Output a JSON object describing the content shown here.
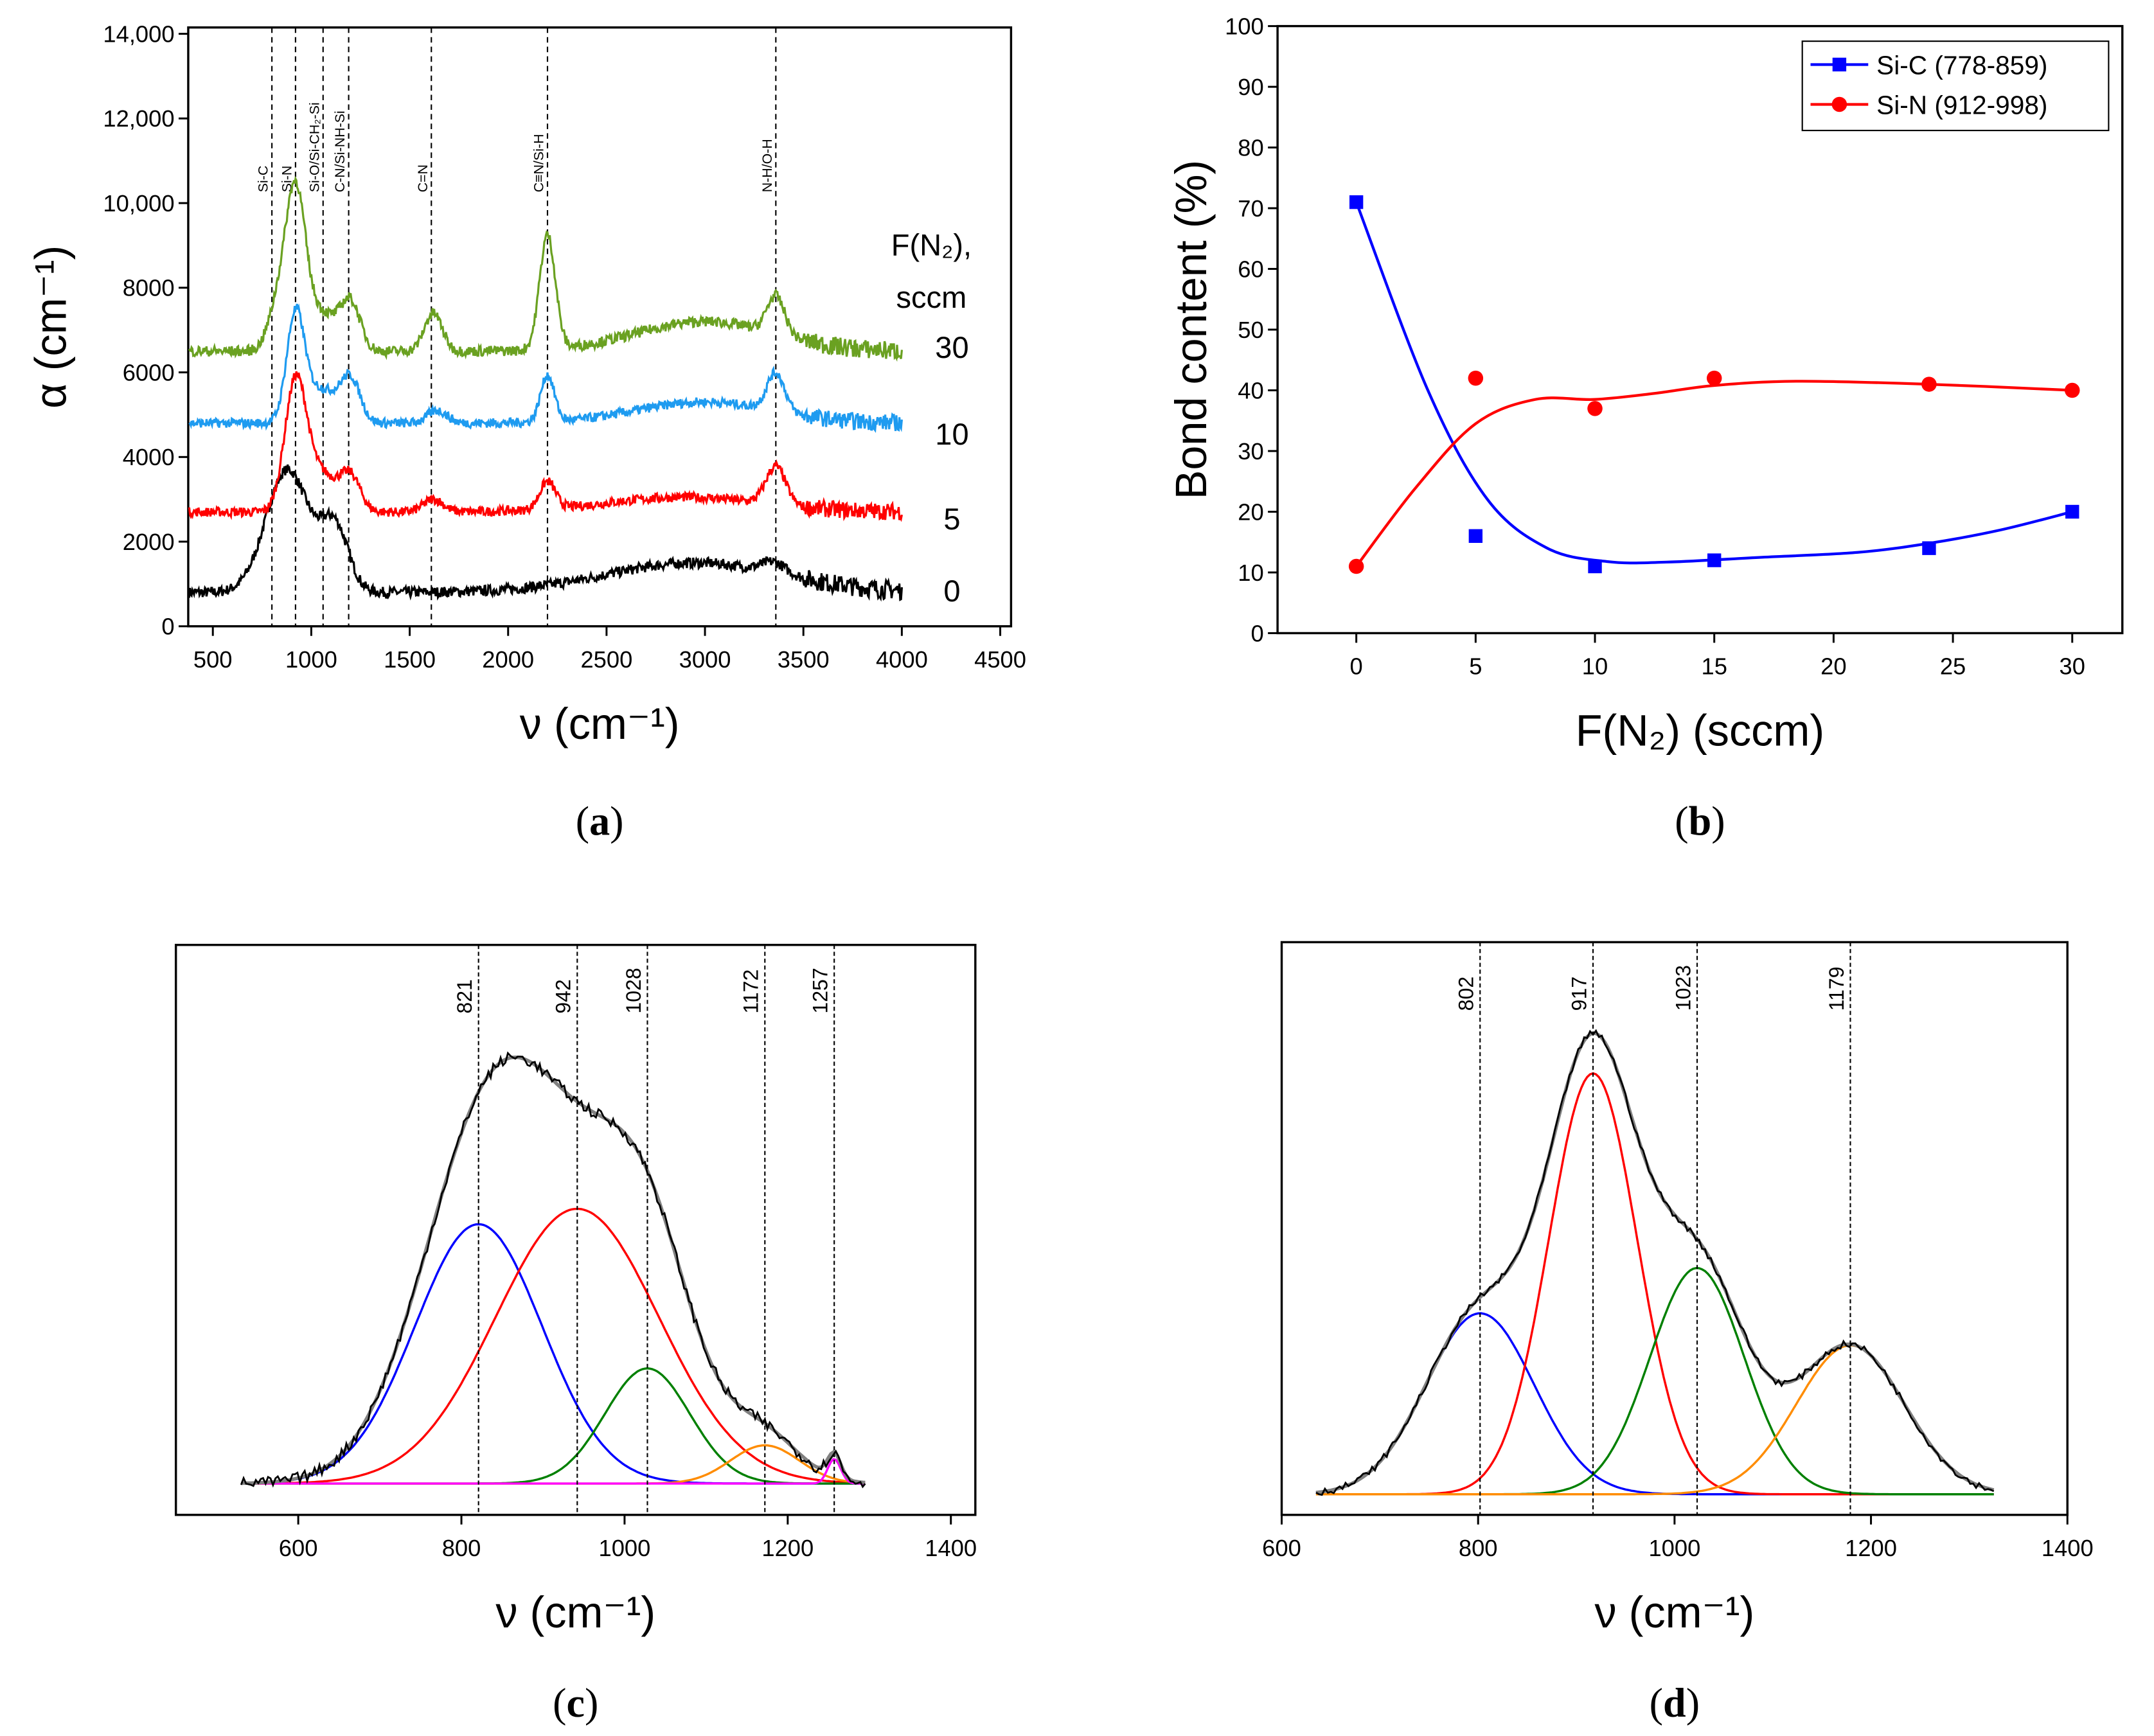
{
  "chart_data": [
    {
      "id": "a",
      "caption": "a",
      "type": "line",
      "title": "",
      "xlabel": "ν (cm⁻¹)",
      "ylabel": "α (cm⁻¹)",
      "xlim": [
        375,
        4555
      ],
      "ylim": [
        0,
        14150
      ],
      "xticks": [
        500,
        1000,
        1500,
        2000,
        2500,
        3000,
        3500,
        4000,
        4500
      ],
      "yticks": [
        0,
        2000,
        4000,
        6000,
        8000,
        10000,
        12000,
        14000
      ],
      "ytick_labels": [
        "0",
        "2000",
        "4000",
        "6000",
        "8000",
        "10,000",
        "12,000",
        "14,000"
      ],
      "legend_title": [
        "F(N₂),",
        "sccm"
      ],
      "annotations": [
        {
          "label": "Si-C",
          "x": 800
        },
        {
          "label": "Si-N",
          "x": 920
        },
        {
          "label": "Si-O/Si-CH₂-Si",
          "x": 1060
        },
        {
          "label": "C-N/Si-NH-Si",
          "x": 1190
        },
        {
          "label": "C=N",
          "x": 1610
        },
        {
          "label": "C≡N/Si-H",
          "x": 2200
        },
        {
          "label": "N-H/O-H",
          "x": 3360
        }
      ],
      "x_range": [
        380,
        4000
      ],
      "series": [
        {
          "name": "0",
          "color": "#000000",
          "baseline": 800,
          "noise": 250,
          "label_y": 850,
          "peaks": [
            [
              880,
              2900,
              110
            ],
            [
              1120,
              1500,
              70
            ],
            [
              2950,
              700,
              450
            ],
            [
              3350,
              250,
              60
            ]
          ]
        },
        {
          "name": "5",
          "color": "#ff0000",
          "baseline": 2700,
          "noise": 220,
          "label_y": 2550,
          "peaks": [
            [
              920,
              3000,
              55
            ],
            [
              1050,
              900,
              80
            ],
            [
              1200,
              800,
              50
            ],
            [
              1620,
              300,
              50
            ],
            [
              2200,
              650,
              40
            ],
            [
              2900,
              350,
              400
            ],
            [
              3360,
              900,
              50
            ]
          ]
        },
        {
          "name": "10",
          "color": "#1e9bf0",
          "baseline": 4800,
          "noise": 220,
          "label_y": 4550,
          "peaks": [
            [
              920,
              2500,
              45
            ],
            [
              1050,
              800,
              80
            ],
            [
              1200,
              1000,
              50
            ],
            [
              1640,
              300,
              50
            ],
            [
              2200,
              1100,
              35
            ],
            [
              3000,
              500,
              350
            ],
            [
              3360,
              900,
              45
            ]
          ]
        },
        {
          "name": "30",
          "color": "#6aa121",
          "baseline": 6500,
          "noise": 250,
          "label_y": 6600,
          "peaks": [
            [
              920,
              3600,
              50
            ],
            [
              830,
              1000,
              50
            ],
            [
              1050,
              900,
              80
            ],
            [
              1200,
              1100,
              50
            ],
            [
              1620,
              900,
              45
            ],
            [
              2200,
              2700,
              40
            ],
            [
              3000,
              700,
              350
            ],
            [
              3360,
              900,
              45
            ]
          ]
        }
      ]
    },
    {
      "id": "b",
      "caption": "b",
      "type": "scatter",
      "xlabel": "F(N₂) (sccm)",
      "ylabel": "Bond content (%)",
      "xlim": [
        -3.3,
        32.1
      ],
      "ylim": [
        0,
        100
      ],
      "xticks": [
        0,
        5,
        10,
        15,
        20,
        25,
        30
      ],
      "yticks": [
        0,
        10,
        20,
        30,
        40,
        50,
        60,
        70,
        80,
        90,
        100
      ],
      "legend_position": "top-right",
      "series": [
        {
          "name": "Si-C (778-859)",
          "color": "#0000ff",
          "marker": "square",
          "x": [
            0,
            5,
            10,
            15,
            24,
            30
          ],
          "y": [
            71,
            16,
            11,
            12,
            14,
            20
          ],
          "fit": [
            [
              0,
              71
            ],
            [
              3,
              40
            ],
            [
              5.5,
              22
            ],
            [
              8,
              14
            ],
            [
              10.5,
              11.8
            ],
            [
              13,
              11.7
            ],
            [
              17,
              12.5
            ],
            [
              21,
              13.3
            ],
            [
              24,
              14.8
            ],
            [
              27,
              17
            ],
            [
              30,
              20
            ]
          ]
        },
        {
          "name": "Si-N (912-998)",
          "color": "#ff0000",
          "marker": "circle",
          "x": [
            0,
            5,
            10,
            15,
            24,
            30
          ],
          "y": [
            11,
            42,
            37,
            42,
            41,
            40
          ],
          "fit": [
            [
              0,
              11
            ],
            [
              2.5,
              24
            ],
            [
              5,
              34.5
            ],
            [
              7.5,
              38.5
            ],
            [
              10,
              38.5
            ],
            [
              12.5,
              39.5
            ],
            [
              15,
              40.8
            ],
            [
              18.5,
              41.5
            ],
            [
              24,
              41
            ],
            [
              30,
              40
            ]
          ]
        }
      ]
    },
    {
      "id": "c",
      "caption": "c",
      "type": "line",
      "xlabel": "ν (cm⁻¹)",
      "xlim": [
        450,
        1430
      ],
      "ylim": [
        0,
        1
      ],
      "xticks": [
        600,
        800,
        1000,
        1200,
        1400
      ],
      "x_range": [
        530,
        1295
      ],
      "baseline": 0.055,
      "peak_labels": [
        "821",
        "942",
        "1028",
        "1172",
        "1257"
      ],
      "components": [
        {
          "center": 821,
          "amplitude": 0.455,
          "sigma": 78,
          "color": "#0000ff"
        },
        {
          "center": 942,
          "amplitude": 0.482,
          "sigma": 100,
          "color": "#ff0000"
        },
        {
          "center": 1028,
          "amplitude": 0.202,
          "sigma": 52,
          "color": "#008000"
        },
        {
          "center": 1172,
          "amplitude": 0.067,
          "sigma": 42,
          "color": "#ff8c00"
        },
        {
          "center": 1257,
          "amplitude": 0.043,
          "sigma": 8,
          "color": "#ff00ff"
        }
      ],
      "fit_color": "#808080",
      "data_color": "#000000"
    },
    {
      "id": "d",
      "caption": "d",
      "type": "line",
      "xlabel": "ν (cm⁻¹)",
      "xlim": [
        600,
        1400
      ],
      "ylim": [
        0,
        1
      ],
      "xticks": [
        600,
        800,
        1000,
        1200,
        1400
      ],
      "x_range": [
        635,
        1325
      ],
      "baseline": 0.036,
      "peak_labels": [
        "802",
        "917",
        "1023",
        "1179"
      ],
      "components": [
        {
          "center": 802,
          "amplitude": 0.316,
          "sigma": 55,
          "color": "#0000ff"
        },
        {
          "center": 917,
          "amplitude": 0.735,
          "sigma": 45,
          "color": "#ff0000"
        },
        {
          "center": 1023,
          "amplitude": 0.395,
          "sigma": 48,
          "color": "#008000"
        },
        {
          "center": 1179,
          "amplitude": 0.26,
          "sigma": 55,
          "color": "#ff8c00"
        }
      ],
      "fit_color": "#808080",
      "data_color": "#000000"
    }
  ]
}
